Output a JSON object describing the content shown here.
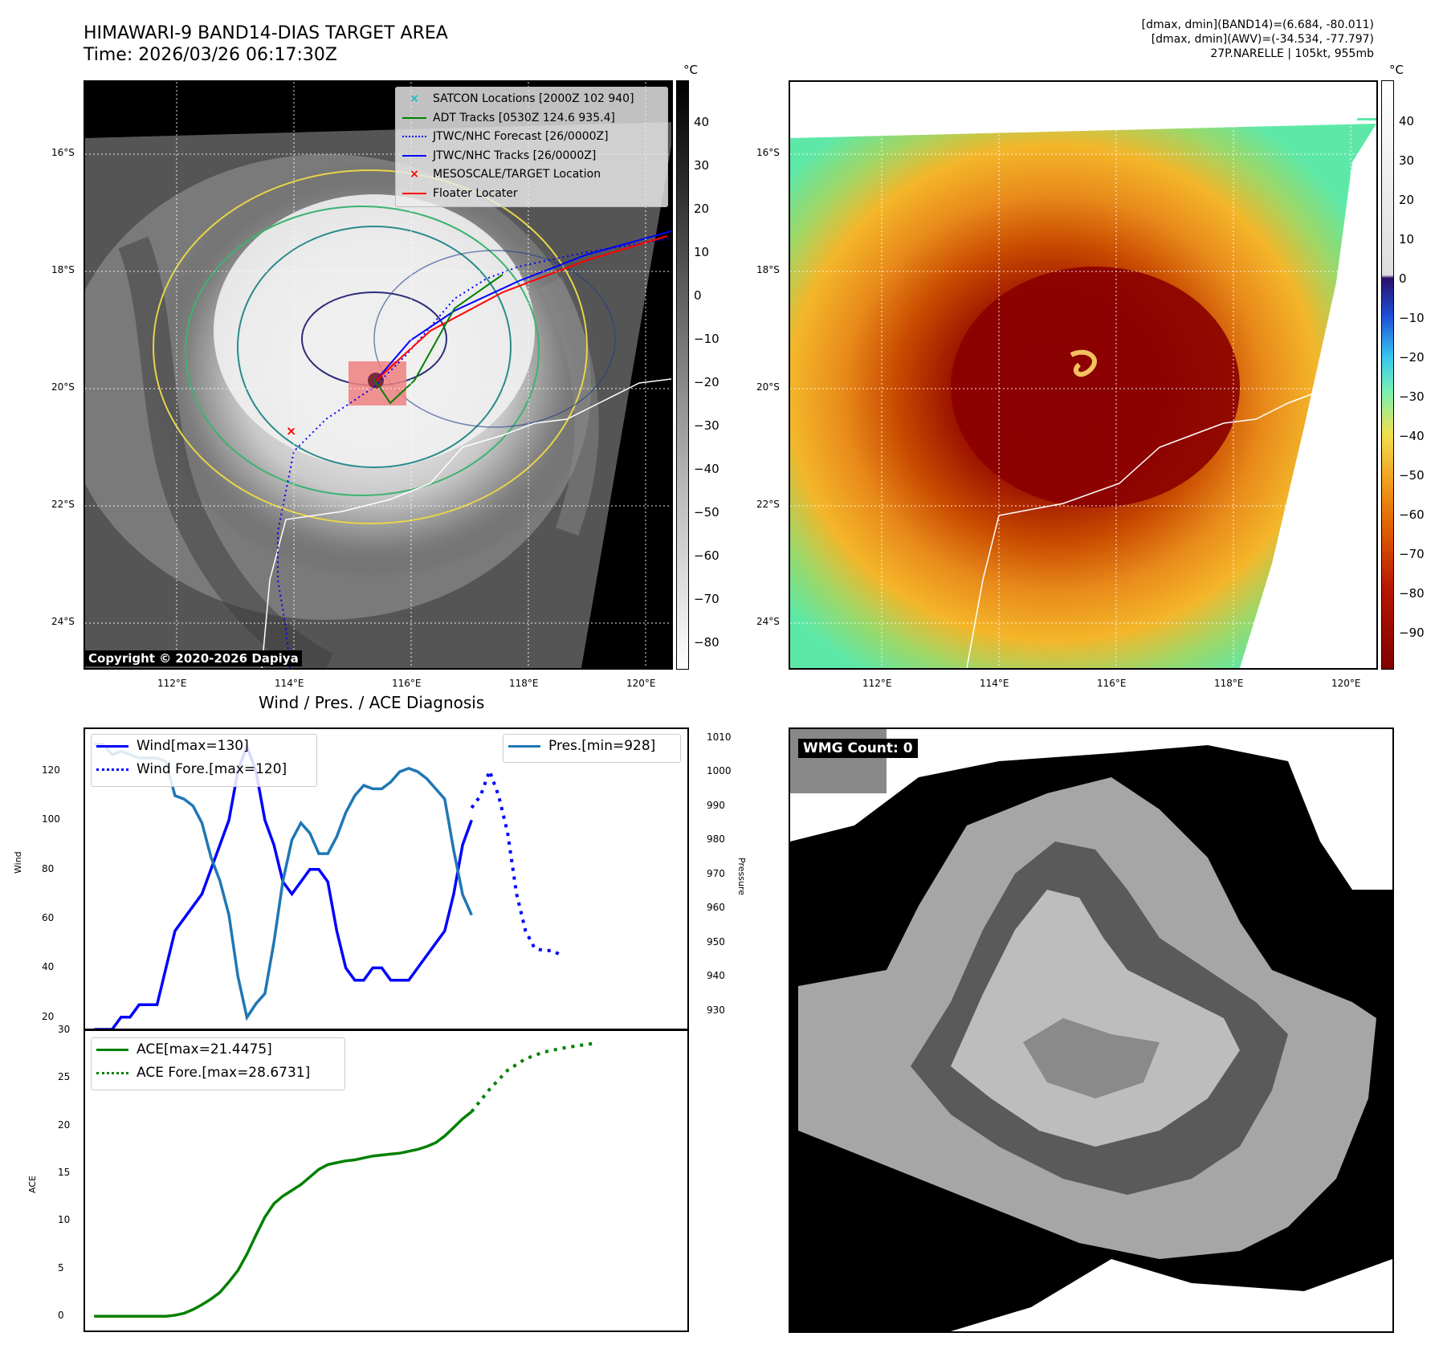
{
  "title": {
    "line1": "HIMAWARI-9 BAND14-DIAS TARGET AREA",
    "line2": "Time: 2026/03/26 06:17:30Z"
  },
  "top_right": {
    "line1": "[dmax, dmin](BAND14)=(6.684, -80.011)",
    "line2": "[dmax, dmin](AWV)=(-34.534, -77.797)",
    "line3": "27P.NARELLE | 105kt, 955mb"
  },
  "map_axes": {
    "lat_labels": [
      "16°S",
      "18°S",
      "20°S",
      "22°S",
      "24°S"
    ],
    "lon_labels": [
      "112°E",
      "114°E",
      "116°E",
      "118°E",
      "120°E"
    ]
  },
  "colorbar_left": {
    "unit": "°C",
    "ticks": [
      "40",
      "30",
      "20",
      "10",
      "0",
      "−10",
      "−20",
      "−30",
      "−40",
      "−50",
      "−60",
      "−70",
      "−80"
    ]
  },
  "colorbar_right": {
    "unit": "°C",
    "ticks": [
      "40",
      "30",
      "20",
      "10",
      "0",
      "−10",
      "−20",
      "−30",
      "−40",
      "−50",
      "−60",
      "−70",
      "−80",
      "−90"
    ]
  },
  "legend_map": [
    {
      "label": "SATCON Locations [2000Z 102 940]",
      "color": "#17becf",
      "marker": "x"
    },
    {
      "label": "ADT Tracks [0530Z 124.6 935.4]",
      "color": "#008000",
      "marker": "line"
    },
    {
      "label": "JTWC/NHC Forecast [26/0000Z]",
      "color": "#0000ff",
      "marker": "dotted"
    },
    {
      "label": "JTWC/NHC Tracks [26/0000Z]",
      "color": "#0000ff",
      "marker": "line-dot"
    },
    {
      "label": "MESOSCALE/TARGET Location",
      "color": "#ff0000",
      "marker": "x"
    },
    {
      "label": "Floater Locater",
      "color": "#ff0000",
      "marker": "line"
    }
  ],
  "copyright": "Copyright © 2020-2026 Dapiya",
  "wmg_badge": "WMG Count: 0",
  "chart_data": [
    {
      "type": "line",
      "title": "Wind / Pres. / ACE Diagnosis",
      "ylabel": "Wind",
      "y2label": "Pressure",
      "ylim": [
        15,
        137
      ],
      "y2lim": [
        924.5,
        1012.5
      ],
      "yticks": [
        20,
        40,
        60,
        80,
        100,
        120
      ],
      "y2ticks": [
        930,
        940,
        950,
        960,
        970,
        980,
        990,
        1000,
        1010
      ],
      "xlim": [
        0,
        67
      ],
      "series": [
        {
          "name": "Wind[max=130]",
          "axis": "left",
          "color": "#0000ff",
          "style": "solid",
          "x": [
            1,
            2,
            3,
            4,
            5,
            6,
            7,
            8,
            9,
            10,
            11,
            12,
            13,
            14,
            15,
            16,
            17,
            18,
            19,
            20,
            21,
            22,
            23,
            24,
            25,
            26,
            27,
            28,
            29,
            30,
            31,
            32,
            33,
            34,
            35,
            36,
            37,
            38,
            39,
            40,
            41,
            42,
            43
          ],
          "values": [
            15,
            15,
            15,
            20,
            20,
            25,
            25,
            25,
            40,
            55,
            60,
            65,
            70,
            80,
            90,
            100,
            120,
            130,
            120,
            100,
            90,
            75,
            70,
            75,
            80,
            80,
            75,
            55,
            40,
            35,
            35,
            40,
            40,
            35,
            35,
            35,
            40,
            45,
            50,
            55,
            70,
            90,
            100
          ]
        },
        {
          "name": "Wind Fore.[max=120]",
          "axis": "left",
          "color": "#0000ff",
          "style": "dotted",
          "x": [
            43,
            44,
            45,
            46,
            47,
            48,
            49,
            50,
            51,
            52,
            53
          ],
          "values": [
            105,
            110,
            120,
            110,
            95,
            70,
            55,
            48,
            47,
            47,
            45
          ]
        },
        {
          "name": "Pres.[min=928]",
          "axis": "right",
          "color": "#1f77b4",
          "style": "solid",
          "x": [
            1,
            2,
            3,
            4,
            5,
            6,
            7,
            8,
            9,
            10,
            11,
            12,
            13,
            14,
            15,
            16,
            17,
            18,
            19,
            20,
            21,
            22,
            23,
            24,
            25,
            26,
            27,
            28,
            29,
            30,
            31,
            32,
            33,
            34,
            35,
            36,
            37,
            38,
            39,
            40,
            41,
            42,
            43
          ],
          "values": [
            1008,
            1008,
            1005,
            1006,
            1005,
            1004,
            1004,
            1004,
            1003,
            993,
            992,
            990,
            985,
            975,
            968,
            958,
            940,
            928,
            932,
            935,
            950,
            968,
            980,
            985,
            982,
            976,
            976,
            981,
            988,
            993,
            996,
            995,
            995,
            997,
            1000,
            1001,
            1000,
            998,
            995,
            992,
            977,
            964,
            958
          ]
        }
      ]
    },
    {
      "type": "line",
      "ylabel": "ACE",
      "ylim": [
        -1.5,
        30
      ],
      "yticks": [
        0,
        5,
        10,
        15,
        20,
        25,
        30
      ],
      "xlim": [
        0,
        67
      ],
      "series": [
        {
          "name": "ACE[max=21.4475]",
          "color": "#008000",
          "style": "solid",
          "x": [
            1,
            3,
            5,
            7,
            9,
            10,
            11,
            12,
            13,
            14,
            15,
            16,
            17,
            18,
            19,
            20,
            21,
            22,
            23,
            24,
            25,
            26,
            27,
            28,
            29,
            30,
            31,
            32,
            33,
            34,
            35,
            36,
            37,
            38,
            39,
            40,
            41,
            42,
            43
          ],
          "values": [
            0,
            0,
            0,
            0,
            0,
            0.1,
            0.3,
            0.7,
            1.2,
            1.8,
            2.5,
            3.6,
            4.8,
            6.5,
            8.5,
            10.4,
            11.8,
            12.6,
            13.2,
            13.8,
            14.6,
            15.4,
            15.9,
            16.1,
            16.3,
            16.4,
            16.6,
            16.8,
            16.9,
            17.0,
            17.1,
            17.3,
            17.5,
            17.8,
            18.2,
            18.9,
            19.8,
            20.7,
            21.45
          ]
        },
        {
          "name": "ACE Fore.[max=28.6731]",
          "color": "#008000",
          "style": "dotted",
          "x": [
            43,
            45,
            47,
            49,
            51,
            53,
            55,
            57
          ],
          "values": [
            21.45,
            23.8,
            25.8,
            27.0,
            27.7,
            28.1,
            28.4,
            28.67
          ]
        }
      ]
    }
  ]
}
